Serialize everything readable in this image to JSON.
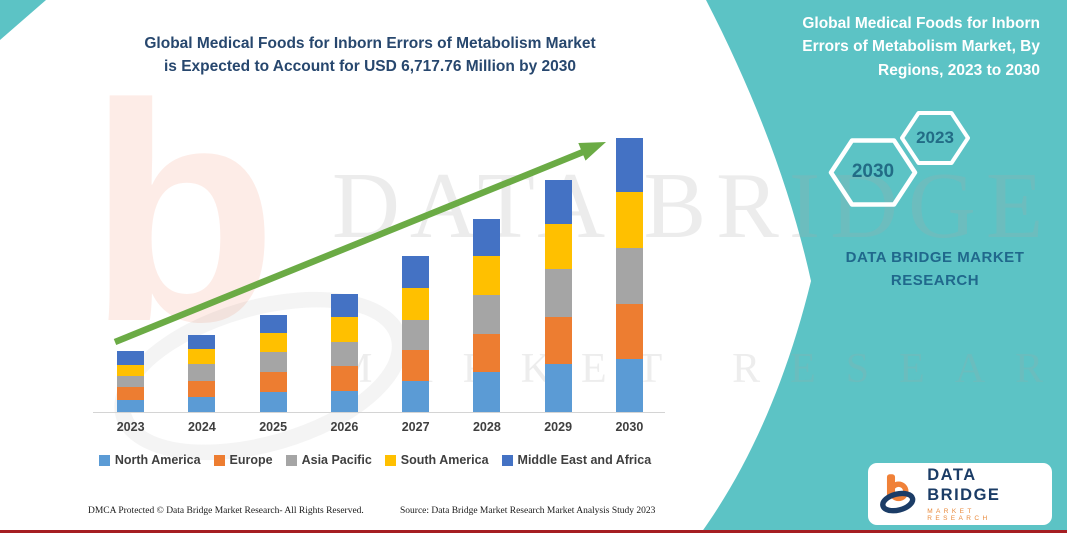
{
  "page": {
    "title_line1": "Global Medical Foods for Inborn Errors of Metabolism Market",
    "title_line2": "is Expected to Account for USD 6,717.76 Million by 2030"
  },
  "side_panel": {
    "heading": "Global Medical Foods for Inborn Errors of Metabolism Market, By Regions, 2023 to 2030",
    "hexagons": [
      {
        "label": "2030"
      },
      {
        "label": "2023"
      }
    ],
    "brand_text": "DATA BRIDGE MARKET RESEARCH",
    "background_color": "#5CC3C5"
  },
  "logo_card": {
    "brand_name": "DATA BRIDGE",
    "brand_subtitle": "MARKET RESEARCH"
  },
  "footer": {
    "dmca_text": "DMCA Protected © Data Bridge Market Research-  All Rights Reserved.",
    "source_text": "Source: Data Bridge Market Research  Market Analysis Study 2023"
  },
  "watermarks": {
    "letter": "b",
    "text_large": "DATA BRIDGE",
    "text_small": "MARKET RESEARCH"
  },
  "chart_data": {
    "type": "bar",
    "stacked": true,
    "title": "Global Medical Foods for Inborn Errors of Metabolism Market, By Regions, 2023 to 2030",
    "unit": "USD Million",
    "stated_total_2030": 6717.76,
    "categories": [
      "2023",
      "2024",
      "2025",
      "2026",
      "2027",
      "2028",
      "2029",
      "2030"
    ],
    "series": [
      {
        "name": "North America",
        "color": "#5B9BD5",
        "values": [
          300,
          380,
          490,
          510,
          750,
          980,
          1170,
          1290
        ]
      },
      {
        "name": "Europe",
        "color": "#ED7D31",
        "values": [
          305,
          390,
          490,
          610,
          775,
          930,
          1160,
          1360
        ]
      },
      {
        "name": "Asia Pacific",
        "color": "#A5A5A5",
        "values": [
          285,
          400,
          490,
          590,
          740,
          965,
          1170,
          1370
        ]
      },
      {
        "name": "South America",
        "color": "#FFC000",
        "values": [
          270,
          375,
          475,
          610,
          765,
          940,
          1100,
          1365
        ]
      },
      {
        "name": "Middle East and Africa",
        "color": "#4472C4",
        "values": [
          330,
          345,
          425,
          570,
          800,
          925,
          1100,
          1332.76
        ]
      }
    ],
    "totals": [
      1490,
      1890,
      2370,
      2890,
      3830,
      4740,
      5700,
      6717.76
    ],
    "ylim": [
      0,
      6960
    ],
    "grid": false,
    "legend_position": "bottom",
    "annotations": [
      "upward green trend arrow across bars"
    ],
    "arrow_color": "#6BAB45"
  }
}
